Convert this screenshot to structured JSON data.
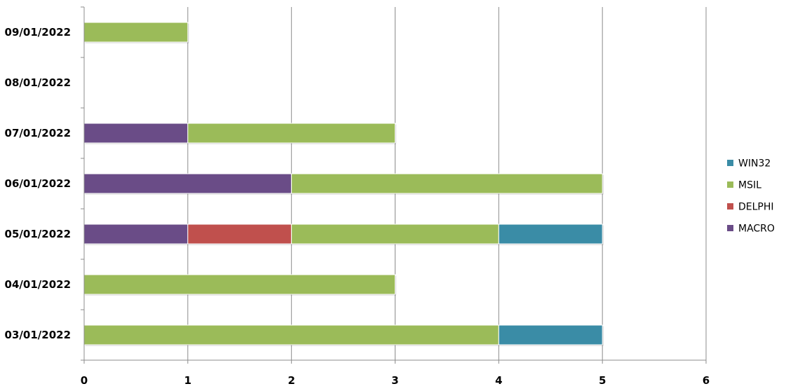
{
  "chart_data": {
    "type": "bar",
    "orientation": "horizontal",
    "stacked": true,
    "title": "",
    "xlabel": "",
    "ylabel": "",
    "categories": [
      "03/01/2022",
      "04/01/2022",
      "05/01/2022",
      "06/01/2022",
      "07/01/2022",
      "08/01/2022",
      "09/01/2022"
    ],
    "series": [
      {
        "name": "MACRO",
        "color": "#6A4C87",
        "values": [
          0,
          0,
          1,
          2,
          1,
          0,
          0
        ]
      },
      {
        "name": "DELPHI",
        "color": "#C0504D",
        "values": [
          0,
          0,
          1,
          0,
          0,
          0,
          0
        ]
      },
      {
        "name": "MSIL",
        "color": "#9BBB59",
        "values": [
          4,
          3,
          2,
          3,
          2,
          0,
          1
        ]
      },
      {
        "name": "WIN32",
        "color": "#3A8CA6",
        "values": [
          1,
          0,
          1,
          0,
          0,
          0,
          0
        ]
      }
    ],
    "xlim": [
      0,
      6
    ],
    "xticks": [
      "0",
      "1",
      "2",
      "3",
      "4",
      "5",
      "6"
    ],
    "grid": "vertical",
    "legend_position": "right"
  }
}
